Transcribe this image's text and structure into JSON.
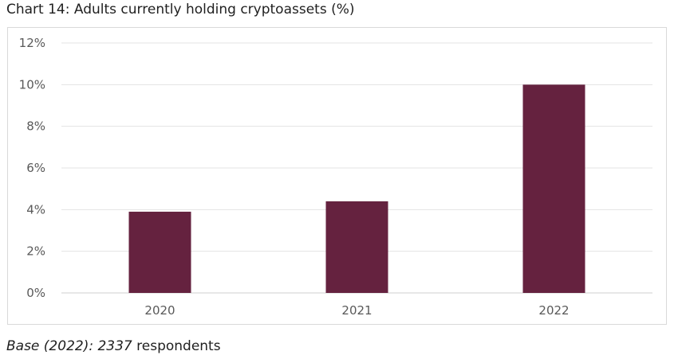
{
  "chart_data": {
    "type": "bar",
    "title": "Chart 14: Adults currently holding cryptoassets (%)",
    "categories": [
      "2020",
      "2021",
      "2022"
    ],
    "values": [
      3.9,
      4.4,
      10
    ],
    "ylim": [
      0,
      12
    ],
    "yticks": [
      0,
      2,
      4,
      6,
      8,
      10,
      12
    ],
    "ytick_labels": [
      "0%",
      "2%",
      "4%",
      "6%",
      "8%",
      "10%",
      "12%"
    ],
    "grid": true,
    "bar_color": "#65223f"
  },
  "footnote": {
    "italic_part": "Base (2022): 2337",
    "rest": " respondents"
  }
}
